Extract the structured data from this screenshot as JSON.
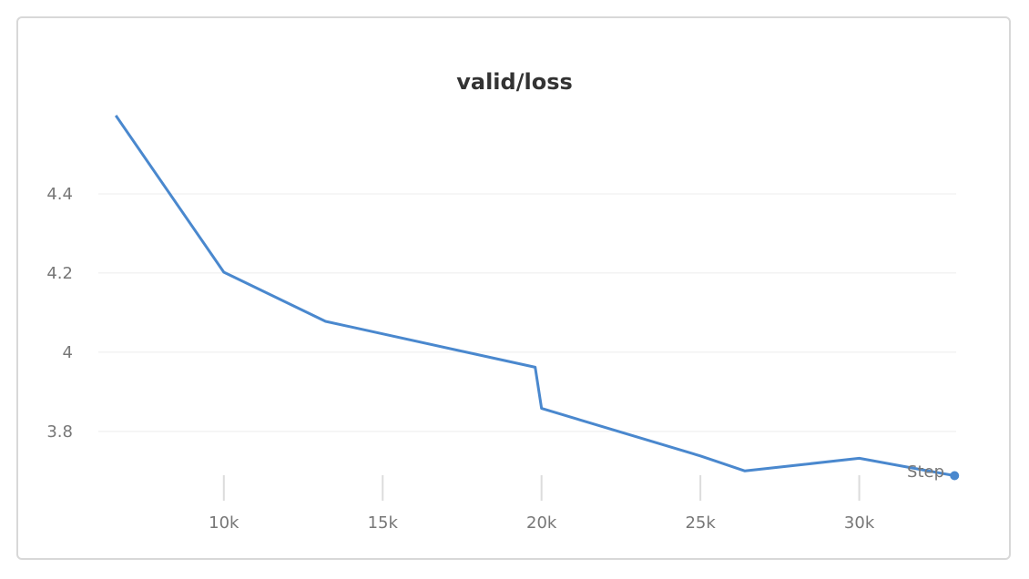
{
  "chart_data": {
    "type": "line",
    "title": "valid/loss",
    "xlabel": "Step",
    "ylabel": "",
    "x_ticks": [
      {
        "value": 10000,
        "label": "10k"
      },
      {
        "value": 15000,
        "label": "15k"
      },
      {
        "value": 20000,
        "label": "20k"
      },
      {
        "value": 25000,
        "label": "25k"
      },
      {
        "value": 30000,
        "label": "30k"
      }
    ],
    "y_ticks": [
      {
        "value": 3.8,
        "label": "3.8"
      },
      {
        "value": 4.0,
        "label": "4"
      },
      {
        "value": 4.2,
        "label": "4.2"
      },
      {
        "value": 4.4,
        "label": "4.4"
      }
    ],
    "xlim": [
      6050,
      33050
    ],
    "ylim": [
      3.657,
      4.6
    ],
    "grid": true,
    "series": [
      {
        "color": "#4a88ce",
        "points": [
          {
            "x": 6600,
            "y": 4.598
          },
          {
            "x": 10000,
            "y": 4.202
          },
          {
            "x": 13200,
            "y": 4.078
          },
          {
            "x": 19800,
            "y": 3.962
          },
          {
            "x": 20000,
            "y": 3.858
          },
          {
            "x": 25000,
            "y": 3.738
          },
          {
            "x": 26400,
            "y": 3.7
          },
          {
            "x": 30000,
            "y": 3.732
          },
          {
            "x": 33000,
            "y": 3.688
          }
        ]
      }
    ]
  }
}
